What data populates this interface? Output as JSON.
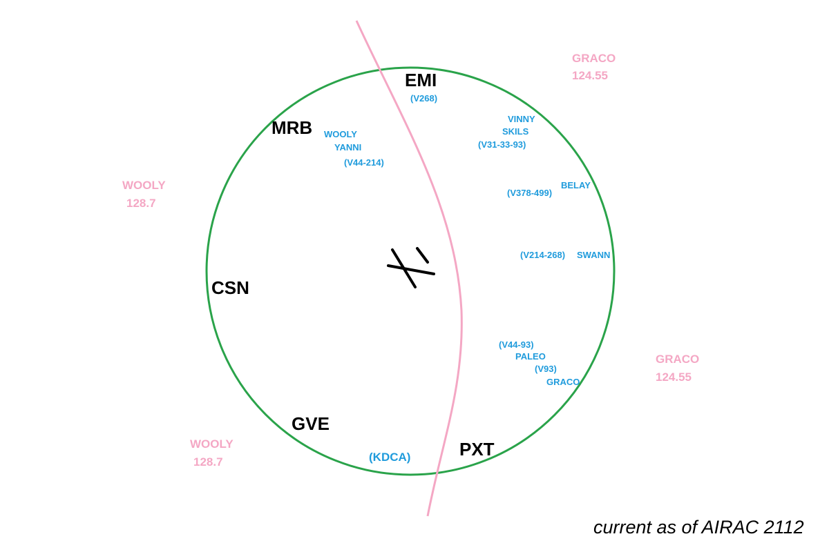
{
  "navaids": {
    "emi": "EMI",
    "mrb": "MRB",
    "csn": "CSN",
    "gve": "GVE",
    "pxt": "PXT"
  },
  "fixes": {
    "v268": "(V268)",
    "vinny": "VINNY",
    "skils": "SKILS",
    "v31_33_93": "(V31-33-93)",
    "wooly": "WOOLY",
    "yanni": "YANNI",
    "v44_214": "(V44-214)",
    "v378_499": "(V378-499)",
    "belay": "BELAY",
    "v214_268": "(V214-268)",
    "swann": "SWANN",
    "v44_93": "(V44-93)",
    "paleo": "PALEO",
    "v93": "(V93)",
    "graco": "GRACO",
    "kdca": "(KDCA)"
  },
  "sectors": {
    "graco_top": {
      "name": "GRACO",
      "freq": "124.55"
    },
    "wooly_left": {
      "name": "WOOLY",
      "freq": "128.7"
    },
    "graco_right": {
      "name": "GRACO",
      "freq": "124.55"
    },
    "wooly_bottom": {
      "name": "WOOLY",
      "freq": "128.7"
    }
  },
  "footnote": "current as of AIRAC 2112",
  "colors": {
    "ring": "#2aa34a",
    "boundary": "#f4a7c4",
    "fix_text": "#1f9bdc",
    "sector_text": "#f4a7c4",
    "navaid_text": "#000000"
  }
}
